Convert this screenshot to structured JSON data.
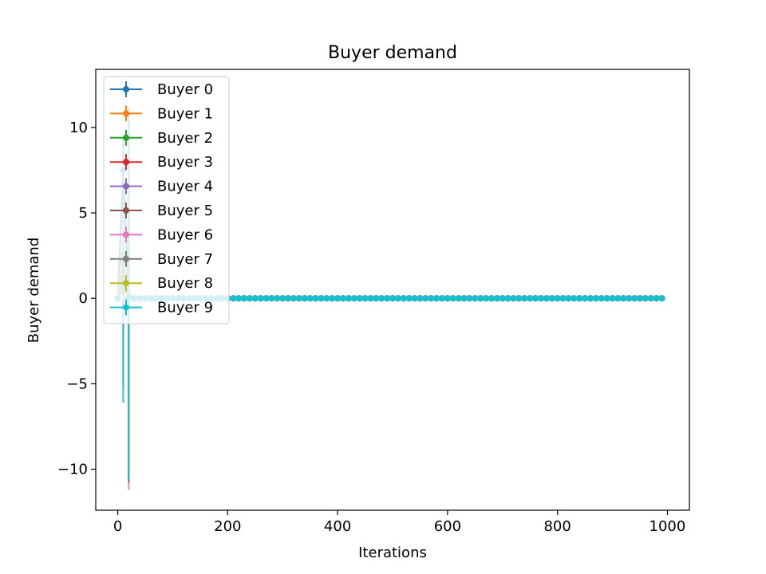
{
  "chart_data": {
    "type": "line",
    "title": "Buyer demand",
    "xlabel": "Iterations",
    "ylabel": "Buyer demand",
    "xlim": [
      -40,
      1040
    ],
    "ylim": [
      -12.4,
      13.4
    ],
    "xticks": [
      0,
      200,
      400,
      600,
      800,
      1000
    ],
    "yticks": [
      -10,
      -5,
      0,
      5,
      10
    ],
    "xtick_labels": [
      "0",
      "200",
      "400",
      "600",
      "800",
      "1000"
    ],
    "ytick_labels": [
      "−10",
      "−5",
      "0",
      "5",
      "10"
    ],
    "grid": false,
    "legend_position": "top-left",
    "x_sampling": {
      "start": 0,
      "step": 10,
      "end": 990
    },
    "series": [
      {
        "name": "Buyer 0",
        "color": "#1f77b4",
        "early": [
          [
            0,
            0.0,
            0
          ],
          [
            10,
            7.5,
            1.8
          ],
          [
            20,
            0.1,
            10.5
          ]
        ]
      },
      {
        "name": "Buyer 1",
        "color": "#ff7f0e",
        "early": [
          [
            0,
            0.0,
            0
          ],
          [
            10,
            0.5,
            2.8
          ],
          [
            20,
            0.0,
            10.5
          ]
        ]
      },
      {
        "name": "Buyer 2",
        "color": "#2ca02c",
        "early": [
          [
            0,
            0.0,
            0
          ],
          [
            10,
            1.2,
            2.6
          ],
          [
            20,
            0.0,
            10.6
          ]
        ]
      },
      {
        "name": "Buyer 3",
        "color": "#d62728",
        "early": [
          [
            0,
            0.0,
            0
          ],
          [
            10,
            1.6,
            2.4
          ],
          [
            20,
            0.0,
            10.6
          ]
        ]
      },
      {
        "name": "Buyer 4",
        "color": "#9467bd",
        "early": [
          [
            0,
            0.0,
            0
          ],
          [
            10,
            1.9,
            2.1
          ],
          [
            20,
            0.0,
            10.7
          ]
        ]
      },
      {
        "name": "Buyer 5",
        "color": "#8c564b",
        "early": [
          [
            0,
            0.0,
            0
          ],
          [
            10,
            2.2,
            1.8
          ],
          [
            20,
            0.0,
            10.8
          ]
        ]
      },
      {
        "name": "Buyer 6",
        "color": "#e377c2",
        "early": [
          [
            0,
            0.0,
            0
          ],
          [
            10,
            1.4,
            1.5
          ],
          [
            20,
            0.0,
            11.2
          ]
        ]
      },
      {
        "name": "Buyer 7",
        "color": "#7f7f7f",
        "early": [
          [
            0,
            0.0,
            0
          ],
          [
            10,
            1.0,
            6.2
          ],
          [
            20,
            0.0,
            10.8
          ]
        ]
      },
      {
        "name": "Buyer 8",
        "color": "#bcbd22",
        "early": [
          [
            0,
            0.0,
            0
          ],
          [
            10,
            2.6,
            1.2
          ],
          [
            20,
            0.0,
            10.5
          ]
        ]
      },
      {
        "name": "Buyer 9",
        "color": "#17becf",
        "early": [
          [
            0,
            0.0,
            0
          ],
          [
            10,
            0.9,
            7.0
          ],
          [
            20,
            0.0,
            10.6
          ]
        ]
      }
    ]
  }
}
